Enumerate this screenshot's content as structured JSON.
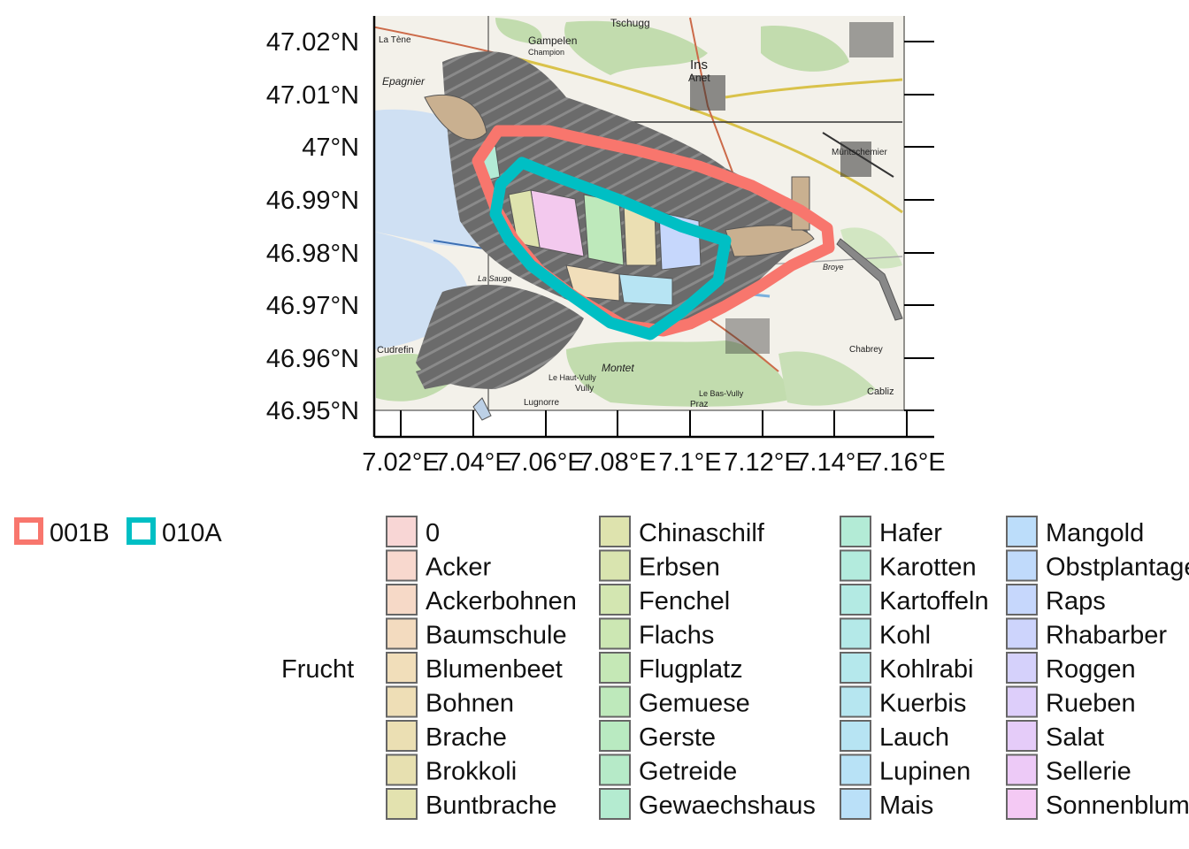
{
  "map": {
    "y_axis_labels": [
      "47.02°N",
      "47.01°N",
      "47°N",
      "46.99°N",
      "46.98°N",
      "46.97°N",
      "46.96°N",
      "46.95°N"
    ],
    "x_axis_labels": [
      "7.02°E",
      "7.04°E",
      "7.06°E",
      "7.08°E",
      "7.1°E",
      "7.12°E",
      "7.14°E",
      "7.16°E"
    ],
    "place_labels": [
      "Tschugg",
      "Gampelen",
      "Champion",
      "Ins",
      "Anet",
      "Müntschemier",
      "La Tène",
      "Epagnier",
      "Montet",
      "Cudrefin",
      "Vully",
      "Le Haut-Vully",
      "Le Bas-Vully",
      "Lugnorre",
      "Praz",
      "Chabrey",
      "Cabliz",
      "La Sauge",
      "Broye"
    ],
    "zones": [
      {
        "id": "001B",
        "color": "#F8766D"
      },
      {
        "id": "010A",
        "color": "#00BFC4"
      }
    ],
    "water_color": "#cfe0f3",
    "forest_color": "#bcd9a8",
    "field_outline_color": "#666666"
  },
  "zone_legend": {
    "items": [
      {
        "label": "001B",
        "color": "#F8766D"
      },
      {
        "label": "010A",
        "color": "#00BFC4"
      }
    ]
  },
  "crop_legend": {
    "title": "Frucht",
    "columns": [
      [
        {
          "label": "0",
          "color": "#F8D6D5"
        },
        {
          "label": "Acker",
          "color": "#F8D8CE"
        },
        {
          "label": "Ackerbohnen",
          "color": "#F6D9C7"
        },
        {
          "label": "Baumschule",
          "color": "#F3DBBF"
        },
        {
          "label": "Blumenbeet",
          "color": "#F1DEBA"
        },
        {
          "label": "Bohnen",
          "color": "#EEDEB6"
        },
        {
          "label": "Brache",
          "color": "#EBDFB3"
        },
        {
          "label": "Brokkoli",
          "color": "#E7E0B0"
        },
        {
          "label": "Buntbrache",
          "color": "#E3E2AF"
        }
      ],
      [
        {
          "label": "Chinaschilf",
          "color": "#DEE3AE"
        },
        {
          "label": "Erbsen",
          "color": "#D9E4AF"
        },
        {
          "label": "Fenchel",
          "color": "#D3E6B1"
        },
        {
          "label": "Flachs",
          "color": "#CCE7B3"
        },
        {
          "label": "Flugplatz",
          "color": "#C5E8B6"
        },
        {
          "label": "Gemuese",
          "color": "#BEE9BB"
        },
        {
          "label": "Gerste",
          "color": "#B9EAC1"
        },
        {
          "label": "Getreide",
          "color": "#B6EAC8"
        },
        {
          "label": "Gewaechshaus",
          "color": "#B4EBD0"
        }
      ],
      [
        {
          "label": "Hafer",
          "color": "#B3EBD6"
        },
        {
          "label": "Karotten",
          "color": "#B3EBDD"
        },
        {
          "label": "Kartoffeln",
          "color": "#B3EAE3"
        },
        {
          "label": "Kohl",
          "color": "#B4E9E8"
        },
        {
          "label": "Kohlrabi",
          "color": "#B5E8EC"
        },
        {
          "label": "Kuerbis",
          "color": "#B6E6F0"
        },
        {
          "label": "Lauch",
          "color": "#B7E4F3"
        },
        {
          "label": "Lupinen",
          "color": "#B8E2F6"
        },
        {
          "label": "Mais",
          "color": "#BAE0F8"
        }
      ],
      [
        {
          "label": "Mangold",
          "color": "#BCDDFA"
        },
        {
          "label": "Obstplantage",
          "color": "#C0DAFB"
        },
        {
          "label": "Raps",
          "color": "#C6D7FC"
        },
        {
          "label": "Rhabarber",
          "color": "#CDD4FC"
        },
        {
          "label": "Roggen",
          "color": "#D5D1FB"
        },
        {
          "label": "Rueben",
          "color": "#DDCEFA"
        },
        {
          "label": "Salat",
          "color": "#E5CCF9"
        },
        {
          "label": "Sellerie",
          "color": "#EDCAF7"
        },
        {
          "label": "Sonnenblumen",
          "color": "#F4C9F4"
        }
      ]
    ]
  }
}
